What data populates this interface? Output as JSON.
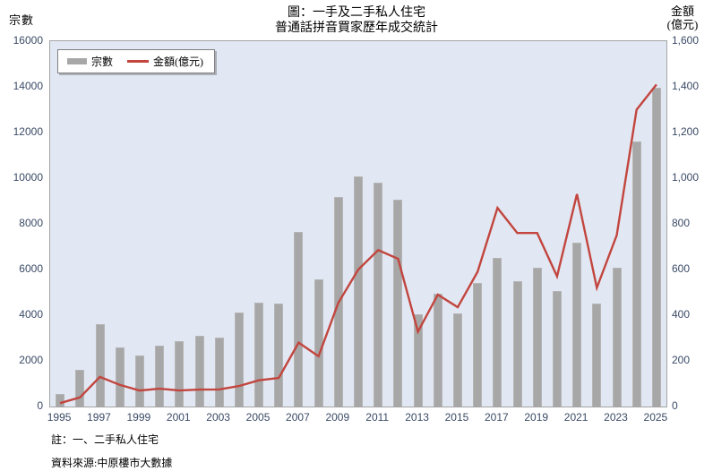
{
  "title": {
    "line1": "圖：一手及二手私人住宅",
    "line2": "普通話拼音買家歷年成交統計"
  },
  "axes": {
    "left": {
      "title": "宗數",
      "ticks": [
        "0",
        "2000",
        "4000",
        "6000",
        "8000",
        "10000",
        "12000",
        "14000",
        "16000"
      ]
    },
    "right": {
      "title_line1": "金額",
      "title_line2": "(億元)",
      "ticks": [
        "0",
        "200",
        "400",
        "600",
        "800",
        "1,000",
        "1,200",
        "1,400",
        "1,600"
      ]
    },
    "x": {
      "tick_years": [
        "1995",
        "1997",
        "1999",
        "2001",
        "2003",
        "2005",
        "2007",
        "2009",
        "2011",
        "2013",
        "2015",
        "2017",
        "2019",
        "2021",
        "2023",
        "2025"
      ]
    }
  },
  "legend": {
    "cases_label": "宗數",
    "amount_label": "金額(億元)"
  },
  "notes": {
    "note": "註：一、二手私人住宅",
    "source": "資料來源:中原樓市大數據"
  },
  "colors": {
    "bar": "#a7a7a7",
    "line": "#c2453e",
    "plot_bg": "#e2e8f3",
    "tick_text": "#3a4a66"
  },
  "chart_data": {
    "type": "bar",
    "title": "圖：一手及二手私人住宅 普通話拼音買家歷年成交統計",
    "categories": [
      1995,
      1996,
      1997,
      1998,
      1999,
      2000,
      2001,
      2002,
      2003,
      2004,
      2005,
      2006,
      2007,
      2008,
      2009,
      2010,
      2011,
      2012,
      2013,
      2014,
      2015,
      2016,
      2017,
      2018,
      2019,
      2020,
      2021,
      2022,
      2023,
      2024,
      2025
    ],
    "series": [
      {
        "name": "宗數",
        "type": "bar",
        "axis": "left",
        "values": [
          550,
          1600,
          3600,
          2600,
          2250,
          2650,
          2850,
          3080,
          3020,
          4100,
          4550,
          4500,
          7650,
          5580,
          9170,
          10080,
          9790,
          9060,
          4050,
          4950,
          4080,
          5400,
          6500,
          5500,
          6080,
          5040,
          7180,
          4520,
          6080,
          11620,
          13950
        ]
      },
      {
        "name": "金額(億元)",
        "type": "line",
        "axis": "right",
        "values": [
          15,
          40,
          130,
          95,
          70,
          78,
          70,
          74,
          75,
          90,
          115,
          125,
          280,
          220,
          455,
          600,
          685,
          647,
          328,
          490,
          435,
          590,
          870,
          760,
          760,
          570,
          930,
          520,
          750,
          1300,
          1410
        ]
      }
    ],
    "left_ylim": [
      0,
      16000
    ],
    "right_ylim": [
      0,
      1600
    ],
    "left_axis_label": "宗數",
    "right_axis_label": "金額(億元)",
    "grid": false,
    "legend_position": "top-left-inside"
  }
}
